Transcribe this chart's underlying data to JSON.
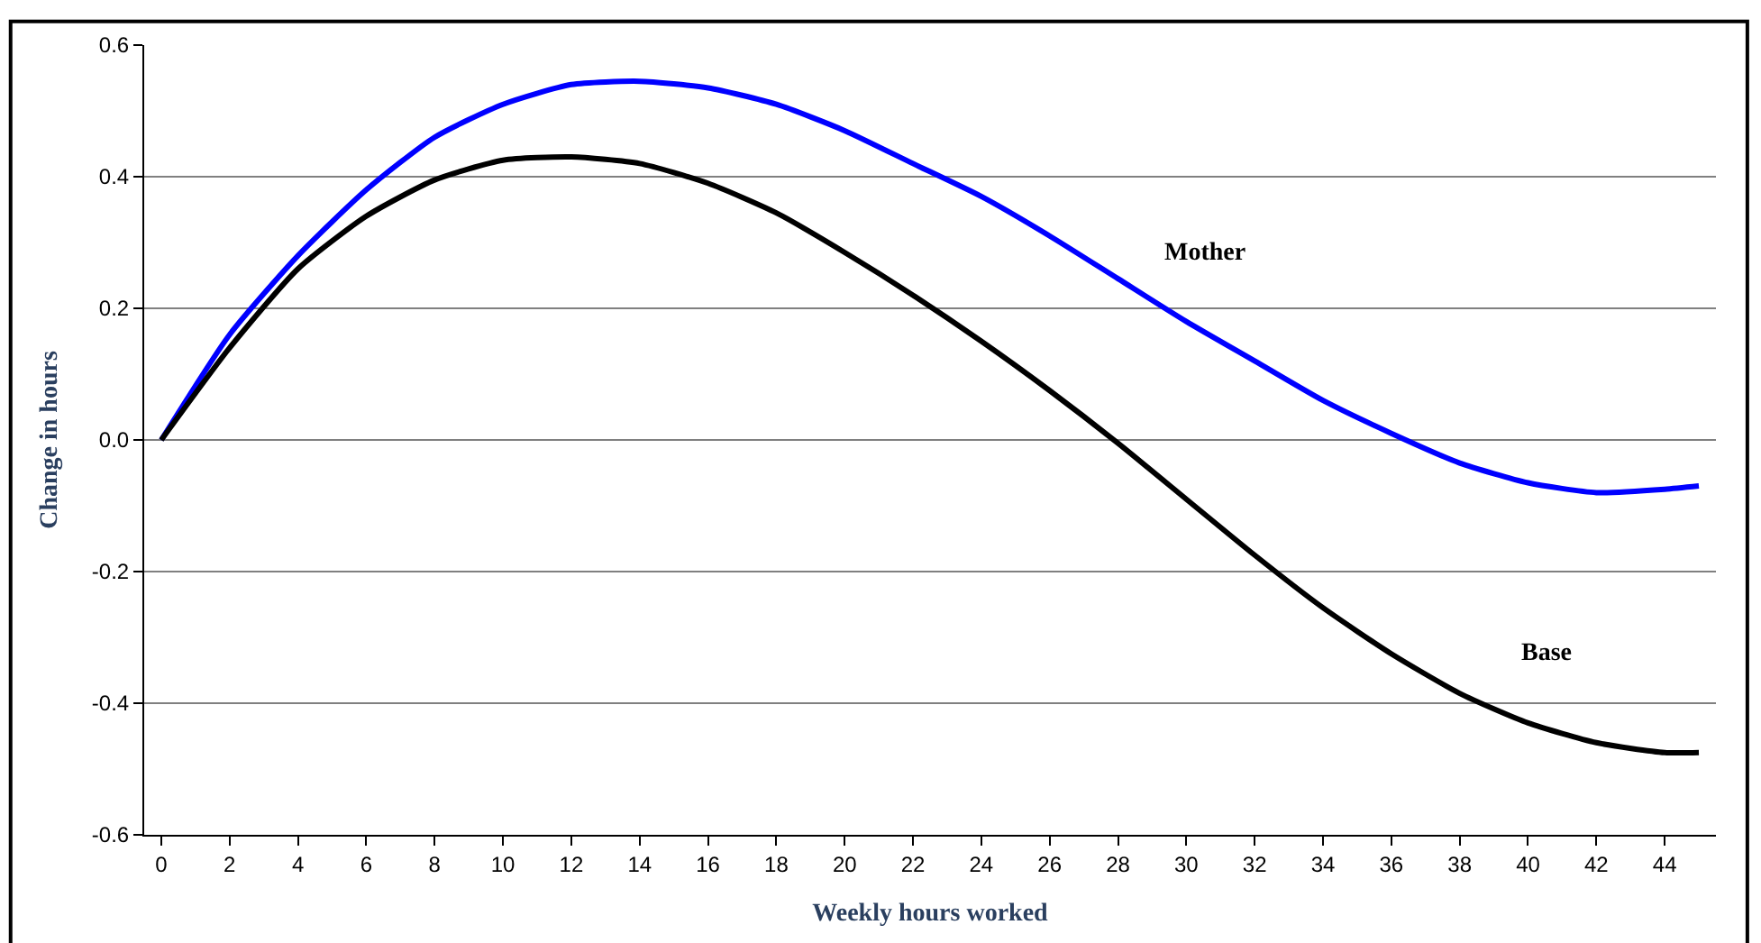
{
  "chart_data": {
    "type": "line",
    "xlabel": "Weekly hours worked",
    "ylabel": "Change in hours",
    "x": [
      0,
      2,
      4,
      6,
      8,
      10,
      12,
      14,
      16,
      18,
      20,
      22,
      24,
      26,
      28,
      30,
      32,
      34,
      36,
      38,
      40,
      42,
      44,
      45
    ],
    "series": [
      {
        "name": "Mother",
        "color": "#0000ff",
        "values": [
          0,
          0.16,
          0.28,
          0.38,
          0.46,
          0.51,
          0.54,
          0.545,
          0.535,
          0.51,
          0.47,
          0.42,
          0.37,
          0.31,
          0.245,
          0.18,
          0.12,
          0.06,
          0.01,
          -0.035,
          -0.065,
          -0.08,
          -0.075,
          -0.07
        ]
      },
      {
        "name": "Base",
        "color": "#000000",
        "values": [
          0,
          0.14,
          0.26,
          0.34,
          0.395,
          0.425,
          0.43,
          0.42,
          0.39,
          0.345,
          0.285,
          0.22,
          0.15,
          0.075,
          -0.005,
          -0.09,
          -0.175,
          -0.255,
          -0.325,
          -0.385,
          -0.43,
          -0.46,
          -0.475,
          -0.475
        ]
      }
    ],
    "xlim": [
      -0.5,
      45.5
    ],
    "xticks": [
      0,
      2,
      4,
      6,
      8,
      10,
      12,
      14,
      16,
      18,
      20,
      22,
      24,
      26,
      28,
      30,
      32,
      34,
      36,
      38,
      40,
      42,
      44
    ],
    "ylim": [
      -0.6,
      0.6
    ],
    "yticks": [
      {
        "value": -0.6,
        "label": "-0.6"
      },
      {
        "value": -0.4,
        "label": "-0.4"
      },
      {
        "value": -0.2,
        "label": "-0.2"
      },
      {
        "value": 0,
        "label": "0.0"
      },
      {
        "value": 0.2,
        "label": "0.2"
      },
      {
        "value": 0.4,
        "label": "0.4"
      },
      {
        "value": 0.6,
        "label": "0.6"
      }
    ],
    "grid": "y",
    "legend": false,
    "marker": "none",
    "line_style": "solid"
  }
}
